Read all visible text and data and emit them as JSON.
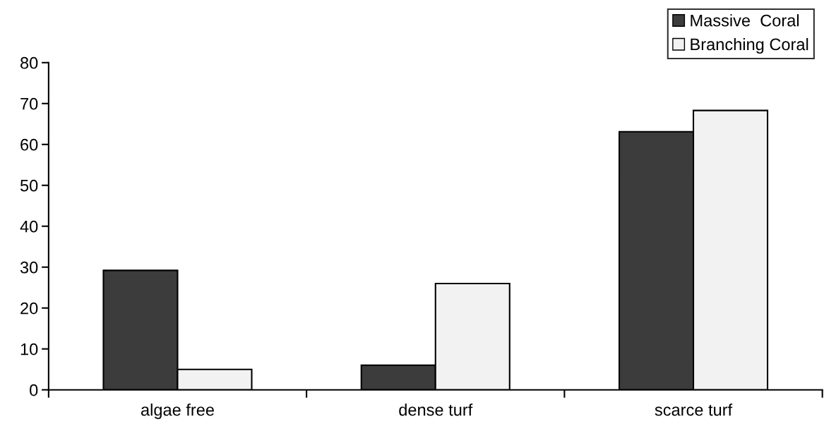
{
  "chart_data": {
    "type": "bar",
    "categories": [
      "algae free",
      "dense turf",
      "scarce turf"
    ],
    "series": [
      {
        "name": "Massive  Coral",
        "color": "#3c3c3c",
        "values": [
          29.2,
          6,
          63.1
        ]
      },
      {
        "name": "Branching Coral",
        "color": "#f2f2f2",
        "values": [
          5,
          26,
          68.3
        ]
      }
    ],
    "ylim": [
      0,
      80
    ],
    "yticks": [
      0,
      10,
      20,
      30,
      40,
      50,
      60,
      70,
      80
    ],
    "grid": false,
    "legend": "top right"
  }
}
